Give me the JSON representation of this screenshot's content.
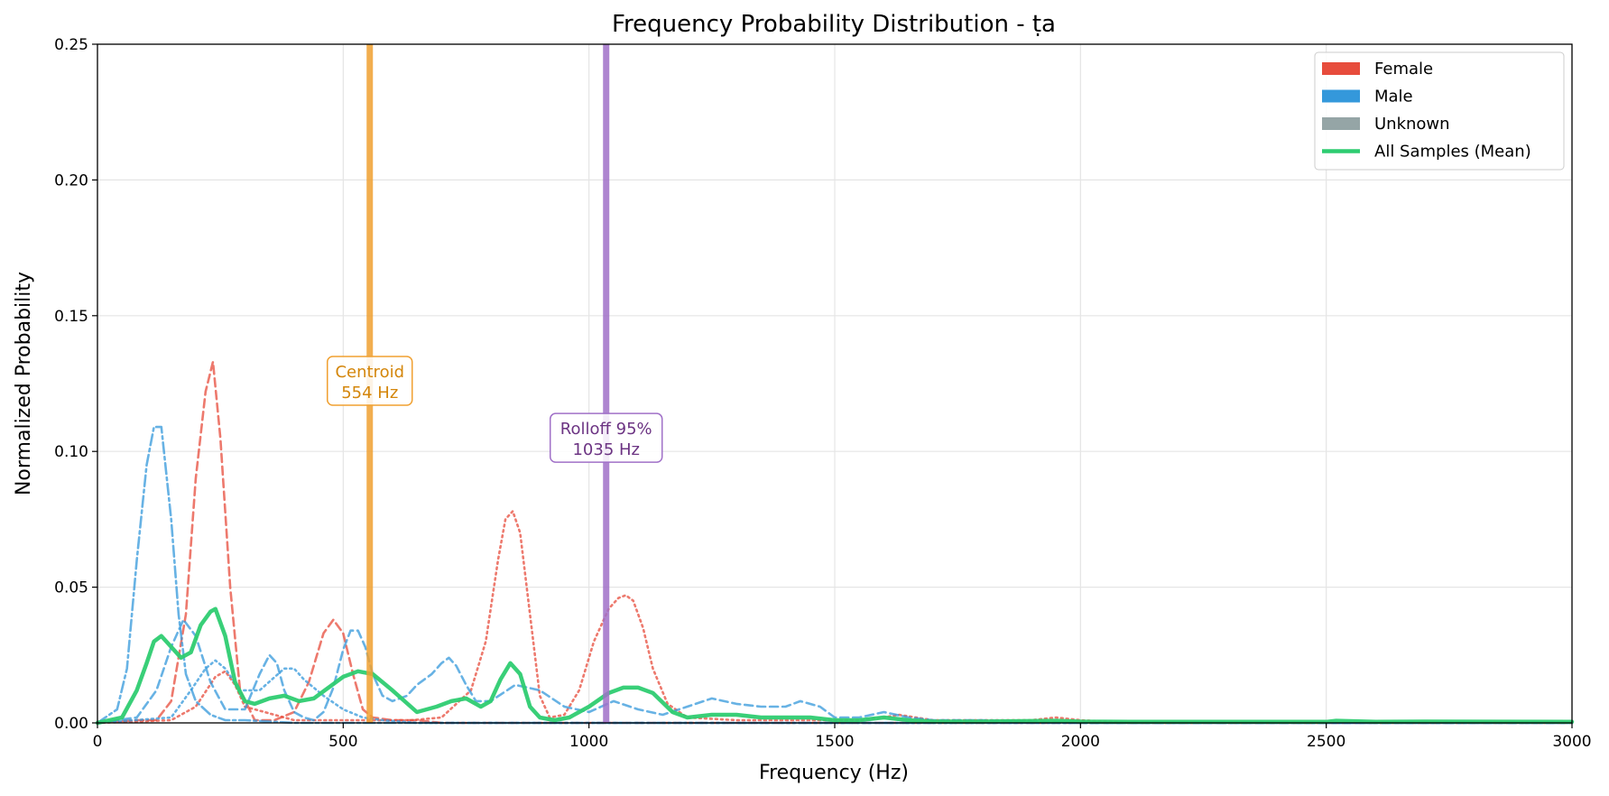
{
  "chart_data": {
    "type": "line",
    "title": "Frequency Probability Distribution - ṭa",
    "xlabel": "Frequency (Hz)",
    "ylabel": "Normalized Probability",
    "xlim": [
      0,
      3000
    ],
    "ylim": [
      0,
      0.25
    ],
    "x_ticks": [
      "0",
      "500",
      "1000",
      "1500",
      "2000",
      "2500",
      "3000"
    ],
    "y_ticks": [
      "0.00",
      "0.05",
      "0.10",
      "0.15",
      "0.20",
      "0.25"
    ],
    "grid": true,
    "legend_position": "top-right",
    "legend": [
      {
        "label": "Female",
        "kind": "patch",
        "color": "#e74c3c"
      },
      {
        "label": "Male",
        "kind": "patch",
        "color": "#3498db"
      },
      {
        "label": "Unknown",
        "kind": "patch",
        "color": "#95a5a6"
      },
      {
        "label": "All Samples (Mean)",
        "kind": "line",
        "color": "#2ecc71"
      }
    ],
    "vlines": [
      {
        "x": 554,
        "color": "#f0a030",
        "label_line1": "Centroid",
        "label_line2": "554 Hz",
        "text_color": "#d4860b",
        "label_y": 0.126
      },
      {
        "x": 1035,
        "color": "#a070c8",
        "label_line1": "Rolloff 95%",
        "label_line2": "1035 Hz",
        "text_color": "#6c3483",
        "label_y": 0.105
      }
    ],
    "series": [
      {
        "color": "#e74c3c",
        "dash": "9,5",
        "x": [
          0,
          80,
          120,
          150,
          180,
          200,
          220,
          235,
          250,
          270,
          290,
          320,
          360,
          400,
          430,
          460,
          480,
          500,
          520,
          540,
          560,
          600,
          650,
          700,
          1000,
          3000
        ],
        "y": [
          0,
          0.001,
          0.001,
          0.008,
          0.04,
          0.09,
          0.122,
          0.133,
          0.105,
          0.05,
          0.012,
          0.001,
          0.001,
          0.004,
          0.015,
          0.033,
          0.038,
          0.033,
          0.018,
          0.005,
          0.002,
          0.001,
          0.001,
          0.0,
          0.0,
          0.0
        ]
      },
      {
        "color": "#e74c3c",
        "dash": "2,4",
        "x": [
          0,
          150,
          200,
          240,
          260,
          280,
          300,
          400,
          500,
          560,
          640,
          700,
          760,
          790,
          815,
          830,
          845,
          860,
          880,
          900,
          920,
          950,
          980,
          1010,
          1040,
          1060,
          1075,
          1090,
          1110,
          1130,
          1160,
          1200,
          1300,
          1450,
          1550,
          1600,
          1630,
          1700,
          1900,
          1950,
          2000,
          2100,
          3000
        ],
        "y": [
          0,
          0.001,
          0.006,
          0.017,
          0.019,
          0.014,
          0.006,
          0.001,
          0.001,
          0.001,
          0.001,
          0.002,
          0.012,
          0.03,
          0.06,
          0.075,
          0.078,
          0.07,
          0.04,
          0.01,
          0.002,
          0.003,
          0.012,
          0.03,
          0.042,
          0.046,
          0.047,
          0.045,
          0.035,
          0.02,
          0.007,
          0.002,
          0.001,
          0.001,
          0.001,
          0.002,
          0.003,
          0.001,
          0.001,
          0.002,
          0.001,
          0.0,
          0.0
        ]
      },
      {
        "color": "#3498db",
        "dash": "12,4,3,4",
        "x": [
          0,
          40,
          60,
          80,
          100,
          115,
          130,
          150,
          165,
          180,
          200,
          230,
          260,
          300,
          400,
          600,
          1000,
          3000
        ],
        "y": [
          0,
          0.005,
          0.02,
          0.06,
          0.095,
          0.109,
          0.109,
          0.075,
          0.04,
          0.018,
          0.008,
          0.003,
          0.001,
          0.001,
          0.0,
          0.0,
          0.0,
          0.0
        ]
      },
      {
        "color": "#3498db",
        "dash": "9,5",
        "x": [
          0,
          80,
          120,
          150,
          175,
          200,
          230,
          260,
          300,
          330,
          350,
          365,
          380,
          400,
          420,
          440,
          460,
          480,
          500,
          515,
          530,
          545,
          560,
          580,
          600,
          630,
          650,
          680,
          700,
          715,
          730,
          750,
          770,
          800,
          850,
          900,
          950,
          1000,
          1050,
          1100,
          1150,
          1200,
          1250,
          1300,
          1350,
          1400,
          1430,
          1470,
          1500,
          1550,
          1600,
          1650,
          1700,
          1800,
          2000,
          2500,
          3000
        ],
        "y": [
          0,
          0.002,
          0.012,
          0.028,
          0.038,
          0.032,
          0.015,
          0.005,
          0.005,
          0.018,
          0.025,
          0.022,
          0.012,
          0.004,
          0.002,
          0.001,
          0.004,
          0.013,
          0.027,
          0.034,
          0.034,
          0.028,
          0.018,
          0.01,
          0.008,
          0.01,
          0.014,
          0.018,
          0.022,
          0.024,
          0.021,
          0.014,
          0.008,
          0.008,
          0.014,
          0.012,
          0.006,
          0.004,
          0.008,
          0.005,
          0.003,
          0.006,
          0.009,
          0.007,
          0.006,
          0.006,
          0.008,
          0.006,
          0.002,
          0.002,
          0.004,
          0.002,
          0.001,
          0.001,
          0.0,
          0.0,
          0.0
        ]
      },
      {
        "color": "#3498db",
        "dash": "2,4",
        "x": [
          0,
          150,
          190,
          220,
          240,
          260,
          290,
          330,
          380,
          400,
          420,
          460,
          500,
          540,
          580,
          650,
          800,
          1000,
          3000
        ],
        "y": [
          0,
          0.002,
          0.012,
          0.02,
          0.023,
          0.02,
          0.012,
          0.012,
          0.02,
          0.02,
          0.016,
          0.01,
          0.005,
          0.002,
          0.001,
          0.0,
          0.0,
          0.0,
          0.0
        ]
      },
      {
        "color": "#2ecc71",
        "dash": "",
        "width": 4.5,
        "x": [
          0,
          50,
          80,
          100,
          115,
          130,
          150,
          170,
          190,
          210,
          230,
          240,
          260,
          280,
          300,
          320,
          350,
          380,
          410,
          440,
          470,
          500,
          530,
          560,
          600,
          650,
          690,
          720,
          750,
          780,
          800,
          820,
          840,
          860,
          880,
          900,
          930,
          960,
          1000,
          1040,
          1070,
          1100,
          1130,
          1170,
          1200,
          1250,
          1300,
          1350,
          1400,
          1450,
          1500,
          1550,
          1600,
          1650,
          1700,
          1800,
          1950,
          2000,
          2100,
          2500,
          2520,
          2600,
          2700,
          3000
        ],
        "y": [
          0,
          0.002,
          0.012,
          0.022,
          0.03,
          0.032,
          0.028,
          0.024,
          0.026,
          0.036,
          0.041,
          0.042,
          0.032,
          0.015,
          0.008,
          0.007,
          0.009,
          0.01,
          0.008,
          0.009,
          0.013,
          0.017,
          0.019,
          0.018,
          0.012,
          0.004,
          0.006,
          0.008,
          0.009,
          0.006,
          0.008,
          0.016,
          0.022,
          0.018,
          0.006,
          0.002,
          0.001,
          0.002,
          0.006,
          0.011,
          0.013,
          0.013,
          0.011,
          0.004,
          0.002,
          0.003,
          0.003,
          0.002,
          0.002,
          0.002,
          0.001,
          0.001,
          0.002,
          0.001,
          0.0005,
          0.0005,
          0.0008,
          0.0005,
          0.0004,
          0.0004,
          0.0008,
          0.0004,
          0.0005,
          0.0004
        ]
      }
    ]
  }
}
